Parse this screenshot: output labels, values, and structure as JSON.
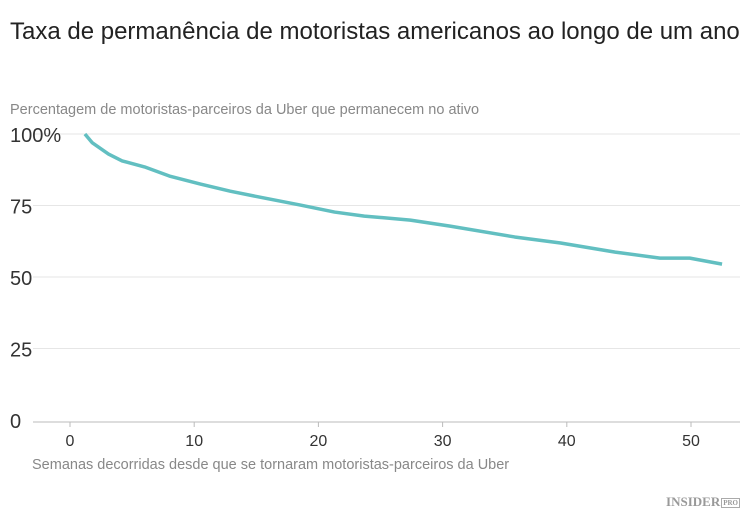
{
  "title": "Taxa de permanência de motoristas americanos ao longo de um ano",
  "logo": "INSIDER",
  "logo_sub": "PRO",
  "chart_data": {
    "type": "line",
    "title": "Taxa de permanência de motoristas americanos ao longo de um ano",
    "ylabel": "Percentagem de motoristas-parceiros da Uber que permanecem no ativo",
    "xlabel": "Semanas decorridas desde que se tornaram motoristas-parceiros da Uber",
    "xlim": [
      -3,
      54
    ],
    "ylim": [
      0,
      100
    ],
    "xticks": [
      0,
      10,
      20,
      30,
      40,
      50
    ],
    "yticks": [
      0,
      25,
      50,
      75,
      100
    ],
    "ytick_labels": [
      "0",
      "25",
      "50",
      "75",
      "100%"
    ],
    "grid": true,
    "color": "#62bfc1",
    "x": [
      1.2,
      1.8,
      3.1,
      4.2,
      6,
      8,
      10.5,
      12.9,
      15.3,
      18.5,
      21.3,
      23.7,
      27.4,
      30.6,
      35.8,
      39.5,
      43.9,
      47.5,
      49.9,
      52.5
    ],
    "y": [
      100,
      96.9,
      93,
      90.6,
      88.5,
      85.3,
      82.5,
      80,
      77.9,
      75.2,
      72.7,
      71.3,
      69.9,
      67.8,
      64,
      61.9,
      58.7,
      56.6,
      56.6,
      54.5
    ]
  }
}
